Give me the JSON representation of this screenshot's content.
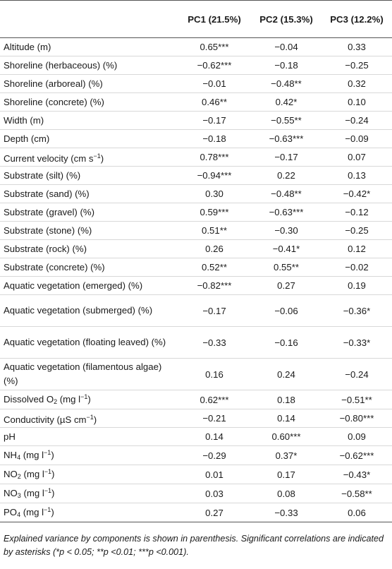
{
  "table": {
    "headers": [
      "",
      "PC1 (21.5%)",
      "PC2 (15.3%)",
      "PC3 (12.2%)"
    ],
    "rows": [
      {
        "label": "Altitude (m)",
        "pc1": "0.65***",
        "pc2": "−0.04",
        "pc3": "0.33"
      },
      {
        "label": "Shoreline (herbaceous) (%)",
        "pc1": "−0.62***",
        "pc2": "−0.18",
        "pc3": "−0.25"
      },
      {
        "label": "Shoreline (arboreal) (%)",
        "pc1": "−0.01",
        "pc2": "−0.48**",
        "pc3": "0.32"
      },
      {
        "label": "Shoreline (concrete) (%)",
        "pc1": "0.46**",
        "pc2": "0.42*",
        "pc3": "0.10"
      },
      {
        "label": "Width (m)",
        "pc1": "−0.17",
        "pc2": "−0.55**",
        "pc3": "−0.24"
      },
      {
        "label": "Depth (cm)",
        "pc1": "−0.18",
        "pc2": "−0.63***",
        "pc3": "−0.09"
      },
      {
        "label": "Current velocity (cm s",
        "label_sup": "−1",
        "label_end": ")",
        "pc1": "0.78***",
        "pc2": "−0.17",
        "pc3": "0.07"
      },
      {
        "label": "Substrate (silt) (%)",
        "pc1": "−0.94***",
        "pc2": "0.22",
        "pc3": "0.13"
      },
      {
        "label": "Substrate (sand) (%)",
        "pc1": "0.30",
        "pc2": "−0.48**",
        "pc3": "−0.42*"
      },
      {
        "label": "Substrate (gravel) (%)",
        "pc1": "0.59***",
        "pc2": "−0.63***",
        "pc3": "−0.12"
      },
      {
        "label": "Substrate (stone) (%)",
        "pc1": "0.51**",
        "pc2": "−0.30",
        "pc3": "−0.25"
      },
      {
        "label": "Substrate (rock) (%)",
        "pc1": "0.26",
        "pc2": "−0.41*",
        "pc3": "0.12"
      },
      {
        "label": "Substrate (concrete) (%)",
        "pc1": "0.52**",
        "pc2": "0.55**",
        "pc3": "−0.02"
      },
      {
        "label": "Aquatic vegetation (emerged) (%)",
        "pc1": "−0.82***",
        "pc2": "0.27",
        "pc3": "0.19"
      },
      {
        "label": "Aquatic vegetation (submerged) (%)",
        "pc1": "−0.17",
        "pc2": "−0.06",
        "pc3": "−0.36*"
      },
      {
        "label": "Aquatic vegetation (floating leaved) (%)",
        "pc1": "−0.33",
        "pc2": "−0.16",
        "pc3": "−0.33*"
      },
      {
        "label": "Aquatic vegetation (filamentous algae) (%)",
        "pc1": "0.16",
        "pc2": "0.24",
        "pc3": "−0.24"
      },
      {
        "label": "Dissolved O",
        "label_sub": "2",
        "label_mid": " (mg l",
        "label_sup": "−1",
        "label_end": ")",
        "pc1": "0.62***",
        "pc2": "0.18",
        "pc3": "−0.51**"
      },
      {
        "label": "Conductivity (µS cm",
        "label_sup": "−1",
        "label_end": ")",
        "pc1": "−0.21",
        "pc2": "0.14",
        "pc3": "−0.80***"
      },
      {
        "label": "pH",
        "pc1": "0.14",
        "pc2": "0.60***",
        "pc3": "0.09"
      },
      {
        "label": "NH",
        "label_sub": "4",
        "label_mid": " (mg l",
        "label_sup": "−1",
        "label_end": ")",
        "pc1": "−0.29",
        "pc2": "0.37*",
        "pc3": "−0.62***"
      },
      {
        "label": "NO",
        "label_sub": "2",
        "label_mid": " (mg l",
        "label_sup": "−1",
        "label_end": ")",
        "pc1": "0.01",
        "pc2": "0.17",
        "pc3": "−0.43*"
      },
      {
        "label": "NO",
        "label_sub": "3",
        "label_mid": " (mg l",
        "label_sup": "−1",
        "label_end": ")",
        "pc1": "0.03",
        "pc2": "0.08",
        "pc3": "−0.58**"
      },
      {
        "label": "PO",
        "label_sub": "4",
        "label_mid": " (mg l",
        "label_sup": "−1",
        "label_end": ")",
        "pc1": "0.27",
        "pc2": "−0.33",
        "pc3": "0.06"
      }
    ]
  },
  "footnote": "Explained variance by components is shown in parenthesis. Significant correlations are indicated by asterisks (*p < 0.05; **p <0.01; ***p <0.001)."
}
